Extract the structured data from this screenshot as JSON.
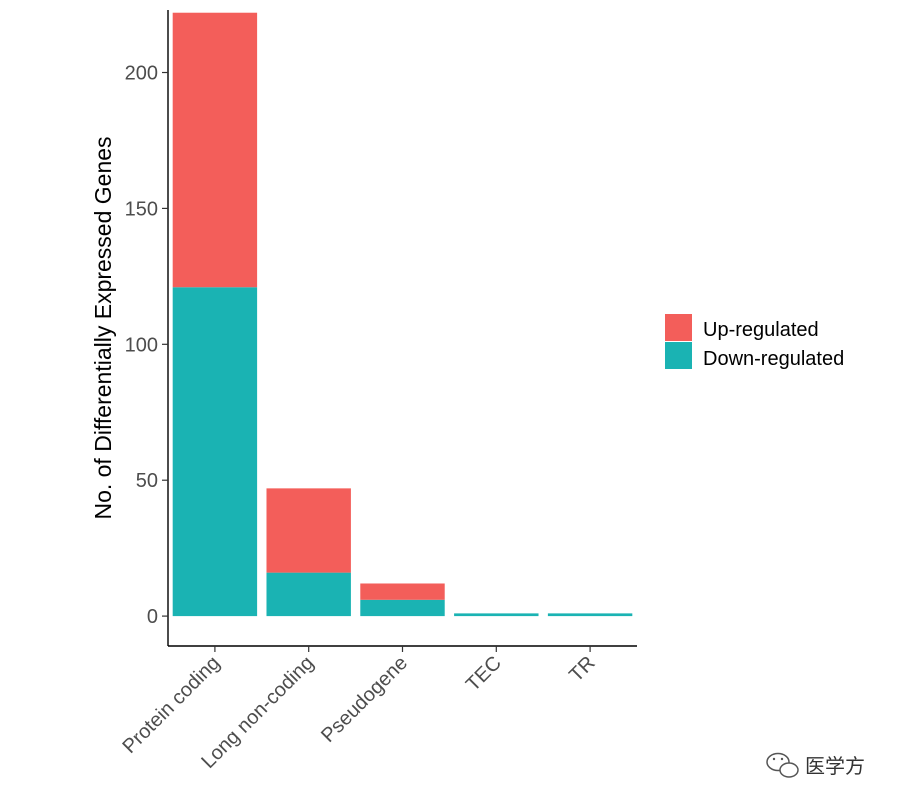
{
  "chart_data": {
    "type": "bar",
    "stacked": true,
    "categories": [
      "Protein coding",
      "Long non-coding",
      "Pseudogene",
      "TEC",
      "TR"
    ],
    "series": [
      {
        "name": "Down-regulated",
        "color": "#1AB3B3",
        "values": [
          121,
          16,
          6,
          1,
          1
        ]
      },
      {
        "name": "Up-regulated",
        "color": "#F35E5A",
        "values": [
          101,
          31,
          6,
          0,
          0
        ]
      }
    ],
    "xlabel": "",
    "ylabel": "No. of Differentially Expressed Genes",
    "ylim": [
      -11,
      223
    ],
    "yticks": [
      0,
      50,
      100,
      150,
      200
    ],
    "grid": false,
    "legend": {
      "placement": "right",
      "entries": [
        {
          "label": "Up-regulated",
          "color": "#F35E5A"
        },
        {
          "label": "Down-regulated",
          "color": "#1AB3B3"
        }
      ]
    }
  },
  "watermark": {
    "text": "医学方",
    "icon": "wechat-icon"
  }
}
